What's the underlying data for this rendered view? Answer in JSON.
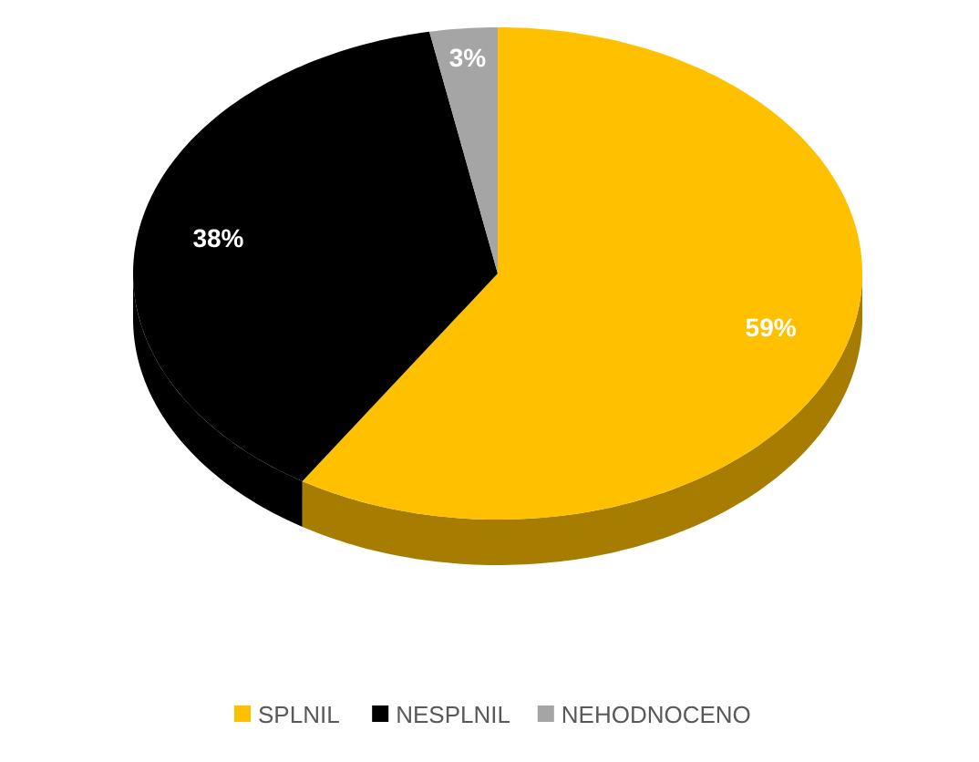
{
  "chart_data": {
    "type": "pie",
    "categories": [
      "SPLNIL",
      "NESPLNIL",
      "NEHODNOCENO"
    ],
    "values": [
      59,
      38,
      3
    ],
    "colors": [
      "#ffc000",
      "#000000",
      "#a5a5a5"
    ],
    "value_labels": [
      "59%",
      "38%",
      "3%"
    ],
    "legend": "bottom"
  }
}
